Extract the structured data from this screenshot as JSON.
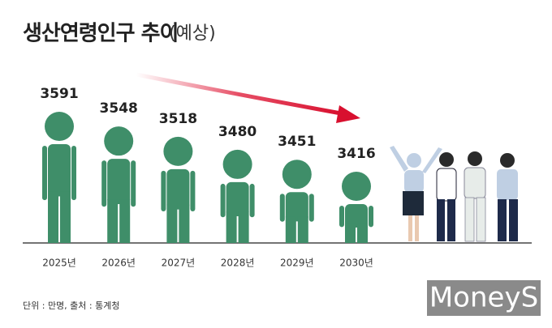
{
  "title": "생산연령인구 추이",
  "subtitle": "(예상)",
  "chart_data": {
    "type": "pictogram",
    "categories": [
      "2025년",
      "2026년",
      "2027년",
      "2028년",
      "2029년",
      "2030년"
    ],
    "values": [
      3591,
      3548,
      3518,
      3480,
      3451,
      3416
    ],
    "color": "#3f8e69"
  },
  "source": "단위 : 만명, 출처 : 통계청",
  "logo": "MoneyS"
}
